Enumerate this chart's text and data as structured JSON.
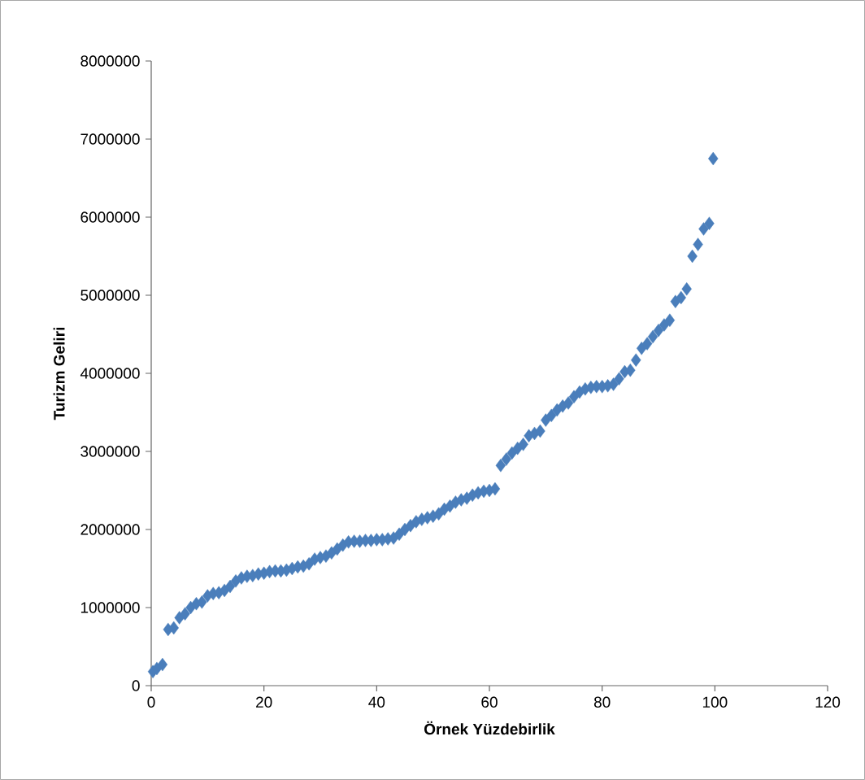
{
  "chart_data": {
    "type": "scatter",
    "xlabel": "Örnek Yüzdebirlik",
    "ylabel": "Turizm Geliri",
    "x": [
      0.3,
      1,
      2,
      3,
      4,
      5,
      6,
      7,
      8,
      9,
      10,
      11,
      12,
      13,
      14,
      15,
      16,
      17,
      18,
      19,
      20,
      21,
      22,
      23,
      24,
      25,
      26,
      27,
      28,
      29,
      30,
      31,
      32,
      33,
      34,
      35,
      36,
      37,
      38,
      39,
      40,
      41,
      42,
      43,
      44,
      45,
      46,
      47,
      48,
      49,
      50,
      51,
      52,
      53,
      54,
      55,
      56,
      57,
      58,
      59,
      60,
      61,
      62,
      63,
      64,
      65,
      66,
      67,
      68,
      69,
      70,
      71,
      72,
      73,
      74,
      75,
      76,
      77,
      78,
      79,
      80,
      81,
      82,
      83,
      84,
      85,
      86,
      87,
      88,
      89,
      90,
      91,
      92,
      93,
      94,
      95,
      96,
      97,
      98,
      99,
      99.7
    ],
    "values": [
      180000,
      220000,
      270000,
      720000,
      740000,
      870000,
      920000,
      1000000,
      1050000,
      1070000,
      1150000,
      1180000,
      1190000,
      1220000,
      1270000,
      1340000,
      1380000,
      1400000,
      1410000,
      1430000,
      1440000,
      1460000,
      1470000,
      1470000,
      1480000,
      1500000,
      1520000,
      1530000,
      1560000,
      1620000,
      1640000,
      1660000,
      1700000,
      1750000,
      1800000,
      1840000,
      1850000,
      1850000,
      1860000,
      1860000,
      1870000,
      1870000,
      1880000,
      1890000,
      1940000,
      2000000,
      2050000,
      2100000,
      2130000,
      2150000,
      2170000,
      2200000,
      2260000,
      2300000,
      2350000,
      2380000,
      2400000,
      2440000,
      2470000,
      2490000,
      2500000,
      2520000,
      2820000,
      2900000,
      2980000,
      3040000,
      3090000,
      3200000,
      3230000,
      3260000,
      3400000,
      3460000,
      3530000,
      3580000,
      3620000,
      3700000,
      3760000,
      3800000,
      3820000,
      3830000,
      3830000,
      3840000,
      3860000,
      3930000,
      4020000,
      4040000,
      4170000,
      4320000,
      4380000,
      4470000,
      4550000,
      4620000,
      4680000,
      4920000,
      4970000,
      5080000,
      5500000,
      5650000,
      5850000,
      5920000,
      6750000
    ],
    "color": "#4a7ebb",
    "marker": "diamond",
    "xlim": [
      0,
      120
    ],
    "ylim": [
      0,
      8000000
    ],
    "xticks": [
      0,
      20,
      40,
      60,
      80,
      100,
      120
    ],
    "yticks": [
      0,
      1000000,
      2000000,
      3000000,
      4000000,
      5000000,
      6000000,
      7000000,
      8000000
    ]
  }
}
